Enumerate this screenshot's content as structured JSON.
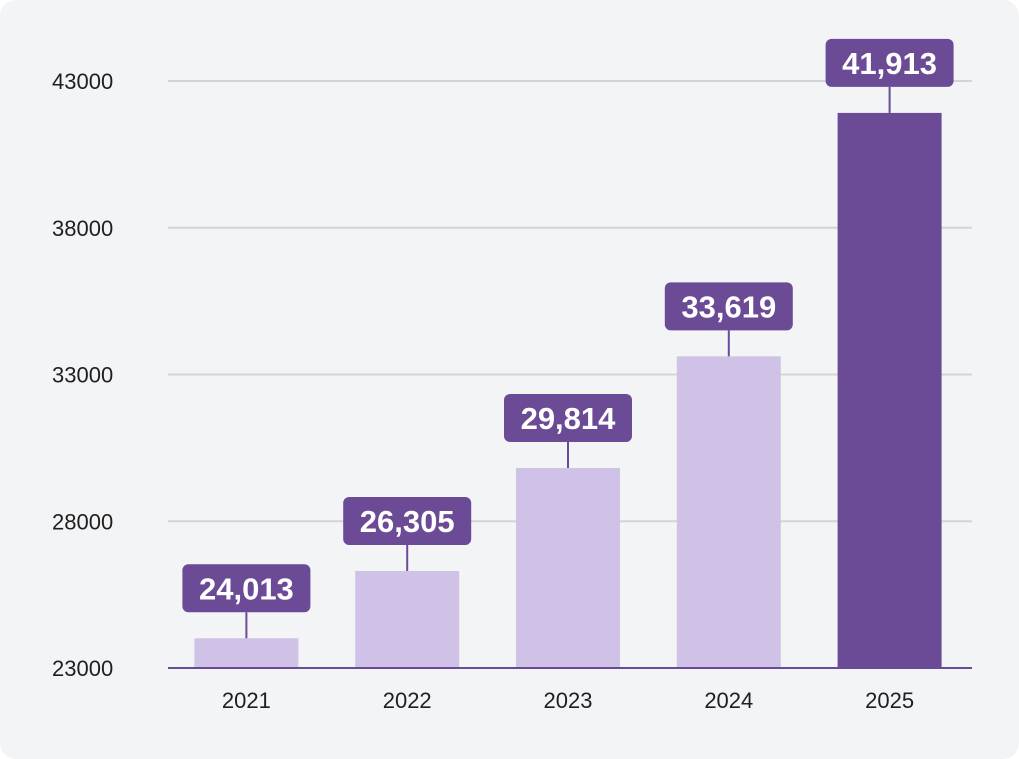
{
  "chart_data": {
    "type": "bar",
    "title": "",
    "xlabel": "",
    "ylabel": "",
    "categories": [
      "2021",
      "2022",
      "2023",
      "2024",
      "2025"
    ],
    "values": [
      24013,
      26305,
      29814,
      33619,
      41913
    ],
    "value_labels": [
      "24,013",
      "26,305",
      "29,814",
      "33,619",
      "41,913"
    ],
    "ylim": [
      23000,
      43000
    ],
    "yticks": [
      23000,
      28000,
      33000,
      38000,
      43000
    ],
    "ytick_labels": [
      "23000",
      "28000",
      "33000",
      "38000",
      "43000"
    ],
    "grid": true,
    "highlight_index": 4
  },
  "colors": {
    "bar": "#d0c1e6",
    "bar_highlight": "#6b4a96",
    "label_bg": "#6b4a96",
    "grid": "#d4d4d8",
    "axis": "#6b4a96"
  }
}
